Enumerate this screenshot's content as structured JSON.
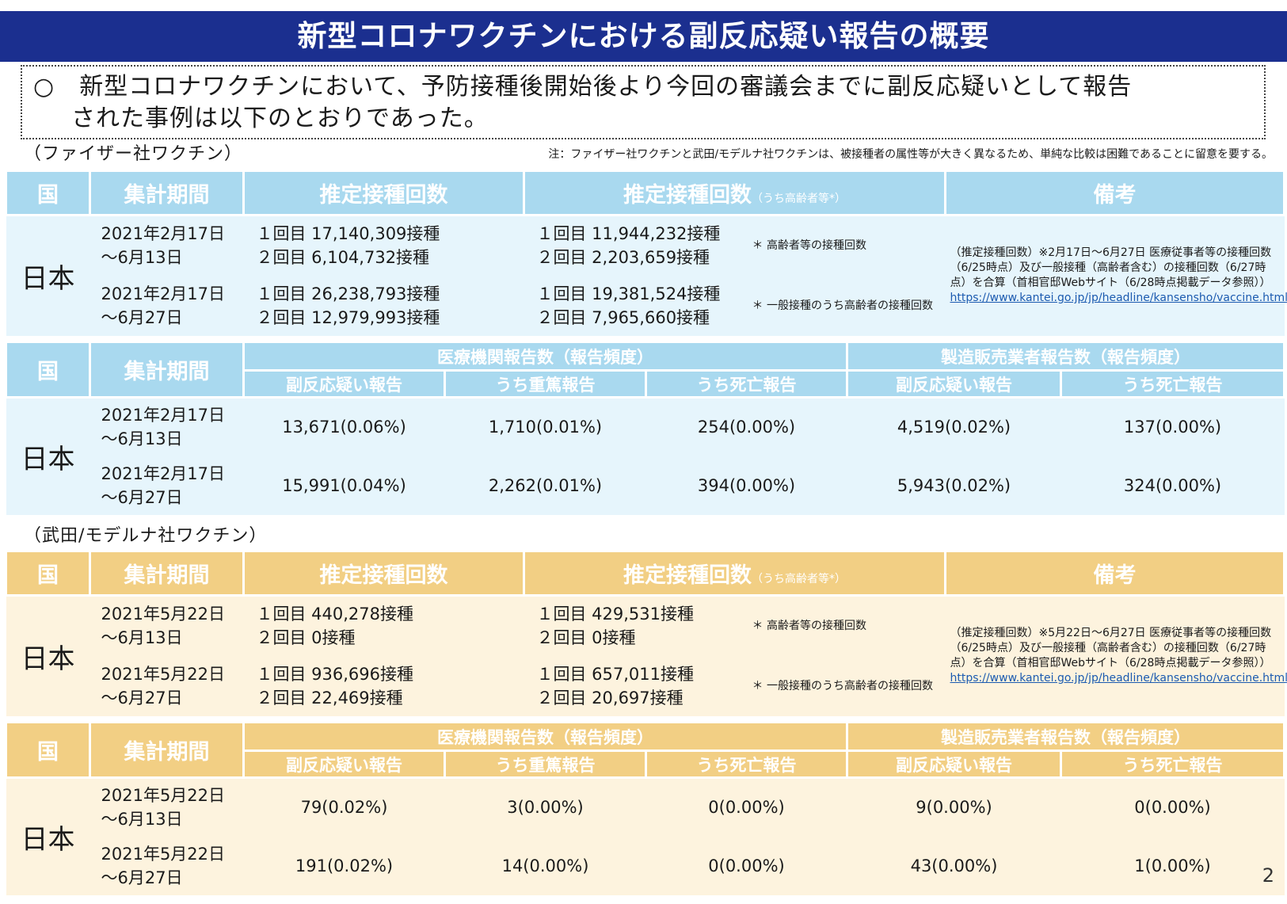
{
  "title": "新型コロナワクチンにおける副反応疑い報告の概要",
  "intro": {
    "bullet": "○",
    "line1": "新型コロナワクチンにおいて、予防接種後開始後より今回の審議会までに副反応疑いとして報告",
    "line2": "された事例は以下のとおりであった。"
  },
  "note": "注：ファイザー社ワクチンと武田/モデルナ社ワクチンは、被接種者の属性等が大きく異なるため、単純な比較は困難であることに留意を要する。",
  "page_number": "2",
  "sections": [
    {
      "label": "（ファイザー社ワクチン）",
      "dose_headers": {
        "country": "国",
        "period": "集計期間",
        "doses": "推定接種回数",
        "elderly_doses": "推定接種回数",
        "elderly_sub": "（うち高齢者等*）",
        "remarks": "備考"
      },
      "country": "日本",
      "dose_rows": [
        {
          "period1": "2021年2月17日",
          "period2": "～6月13日",
          "dose1": "１回目 17,140,309接種",
          "dose2": "２回目 6,104,732接種",
          "eld1": "１回目 11,944,232接種",
          "eld2": "２回目 2,203,659接種",
          "dagger": "＊ 高齢者等の接種回数"
        },
        {
          "period1": "2021年2月17日",
          "period2": "～6月27日",
          "dose1": "１回目 26,238,793接種",
          "dose2": "２回目 12,979,993接種",
          "eld1": "１回目 19,381,524接種",
          "eld2": "２回目 7,965,660接種",
          "dagger": "＊ 一般接種のうち高齢者の接種回数"
        }
      ],
      "remarks_text": "（推定接種回数）※2月17日～6月27日 医療従事者等の接種回数（6/25時点）及び一般接種（高齢者含む）の接種回数（6/27時点）を合算（首相官邸Webサイト（6/28時点掲載データ参照））",
      "remarks_link": "https://www.kantei.go.jp/jp/headline/kansensho/vaccine.html",
      "report_headers": {
        "country": "国",
        "period": "集計期間",
        "medical": "医療機関報告数（報告頻度）",
        "manufacturer": "製造販売業者報告数（報告頻度）",
        "m_suspected": "副反応疑い報告",
        "m_serious": "うち重篤報告",
        "m_death": "うち死亡報告",
        "f_suspected": "副反応疑い報告",
        "f_death": "うち死亡報告"
      },
      "report_rows": [
        {
          "period1": "2021年2月17日",
          "period2": "～6月13日",
          "m_suspected": "13,671(0.06%)",
          "m_serious": "1,710(0.01%)",
          "m_death": "254(0.00%)",
          "f_suspected": "4,519(0.02%)",
          "f_death": "137(0.00%)"
        },
        {
          "period1": "2021年2月17日",
          "period2": "～6月27日",
          "m_suspected": "15,991(0.04%)",
          "m_serious": "2,262(0.01%)",
          "m_death": "394(0.00%)",
          "f_suspected": "5,943(0.02%)",
          "f_death": "324(0.00%)"
        }
      ]
    },
    {
      "label": "（武田/モデルナ社ワクチン）",
      "dose_headers": {
        "country": "国",
        "period": "集計期間",
        "doses": "推定接種回数",
        "elderly_doses": "推定接種回数",
        "elderly_sub": "（うち高齢者等*）",
        "remarks": "備考"
      },
      "country": "日本",
      "dose_rows": [
        {
          "period1": "2021年5月22日",
          "period2": "～6月13日",
          "dose1": "１回目 440,278接種",
          "dose2": "２回目 0接種",
          "eld1": "１回目 429,531接種",
          "eld2": "２回目 0接種",
          "dagger": "＊ 高齢者等の接種回数"
        },
        {
          "period1": "2021年5月22日",
          "period2": "～6月27日",
          "dose1": "１回目 936,696接種",
          "dose2": "２回目 22,469接種",
          "eld1": "１回目 657,011接種",
          "eld2": "２回目 20,697接種",
          "dagger": "＊ 一般接種のうち高齢者の接種回数"
        }
      ],
      "remarks_text": "（推定接種回数）※5月22日～6月27日 医療従事者等の接種回数（6/25時点）及び一般接種（高齢者含む）の接種回数（6/27時点）を合算（首相官邸Webサイト（6/28時点掲載データ参照））",
      "remarks_link": "https://www.kantei.go.jp/jp/headline/kansensho/vaccine.html",
      "report_headers": {
        "country": "国",
        "period": "集計期間",
        "medical": "医療機関報告数（報告頻度）",
        "manufacturer": "製造販売業者報告数（報告頻度）",
        "m_suspected": "副反応疑い報告",
        "m_serious": "うち重篤報告",
        "m_death": "うち死亡報告",
        "f_suspected": "副反応疑い報告",
        "f_death": "うち死亡報告"
      },
      "report_rows": [
        {
          "period1": "2021年5月22日",
          "period2": "～6月13日",
          "m_suspected": "79(0.02%)",
          "m_serious": "3(0.00%)",
          "m_death": "0(0.00%)",
          "f_suspected": "9(0.00%)",
          "f_death": "0(0.00%)"
        },
        {
          "period1": "2021年5月22日",
          "period2": "～6月27日",
          "m_suspected": "191(0.02%)",
          "m_serious": "14(0.00%)",
          "m_death": "0(0.00%)",
          "f_suspected": "43(0.00%)",
          "f_death": "1(0.00%)"
        }
      ]
    }
  ]
}
